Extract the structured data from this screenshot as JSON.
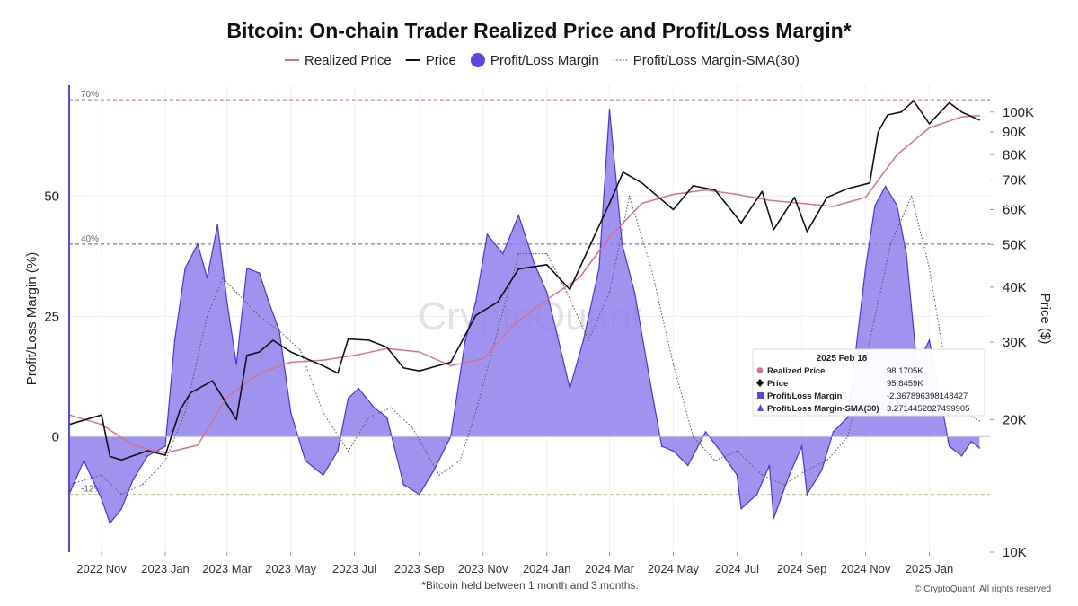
{
  "chart_data": {
    "type": "area",
    "title": "Bitcoin: On-chain Trader Realized Price and Profit/Loss Margin*",
    "footnote": "*Bitcoin held between 1 month and 3 months.",
    "credit": "© CryptoQuant. All rights reserved",
    "watermark": "CryptoQuant",
    "legend": [
      {
        "name": "Realized Price",
        "color": "#d9708a",
        "style": "line"
      },
      {
        "name": "Price",
        "color": "#111111",
        "style": "line"
      },
      {
        "name": "Profit/Loss Margin",
        "color": "#5b46e0",
        "style": "dot"
      },
      {
        "name": "Profit/Loss Margin-SMA(30)",
        "color": "#555555",
        "style": "dotted"
      }
    ],
    "left_axis": {
      "title": "Profit/Loss Margin (%)",
      "ticks": [
        0,
        25,
        50
      ],
      "range": [
        -24,
        73
      ]
    },
    "right_axis": {
      "title": "Price ($)",
      "scale": "log",
      "range": [
        10000,
        115000
      ],
      "ticks": [
        10000,
        20000,
        30000,
        40000,
        50000,
        60000,
        70000,
        80000,
        90000,
        100000
      ],
      "tick_labels": [
        "10K",
        "20K",
        "30K",
        "40K",
        "50K",
        "60K",
        "70K",
        "80K",
        "90K",
        "100K"
      ]
    },
    "reference_lines": [
      {
        "label": "70%",
        "value": 70,
        "color": "#c96a7a"
      },
      {
        "label": "40%",
        "value": 40,
        "color": "#5a56c8"
      },
      {
        "label": "-12%",
        "value": -12,
        "color": "#c8c25a"
      }
    ],
    "x_axis": {
      "start": "2022-10-01",
      "end": "2025-02-28",
      "ticks": [
        "2022-11-01",
        "2023-01-01",
        "2023-03-01",
        "2023-05-01",
        "2023-07-01",
        "2023-09-01",
        "2023-11-01",
        "2024-01-01",
        "2024-03-01",
        "2024-05-01",
        "2024-07-01",
        "2024-09-01",
        "2024-11-01",
        "2025-01-01"
      ],
      "tick_labels": [
        "2022 Nov",
        "2023 Jan",
        "2023 Mar",
        "2023 May",
        "2023 Jul",
        "2023 Sep",
        "2023 Nov",
        "2024 Jan",
        "2024 Mar",
        "2024 May",
        "2024 Jul",
        "2024 Sep",
        "2024 Nov",
        "2025 Jan"
      ]
    },
    "series": [
      {
        "name": "Profit/Loss Margin",
        "unit": "%",
        "dates": [
          "2022-10-01",
          "2022-10-15",
          "2022-11-01",
          "2022-11-09",
          "2022-11-20",
          "2022-12-01",
          "2022-12-15",
          "2023-01-01",
          "2023-01-10",
          "2023-01-20",
          "2023-02-01",
          "2023-02-10",
          "2023-02-20",
          "2023-03-01",
          "2023-03-10",
          "2023-03-20",
          "2023-04-01",
          "2023-04-10",
          "2023-04-20",
          "2023-05-01",
          "2023-05-15",
          "2023-06-01",
          "2023-06-15",
          "2023-06-25",
          "2023-07-05",
          "2023-07-20",
          "2023-08-01",
          "2023-08-17",
          "2023-09-01",
          "2023-09-15",
          "2023-10-01",
          "2023-10-15",
          "2023-10-25",
          "2023-11-05",
          "2023-11-20",
          "2023-12-05",
          "2023-12-20",
          "2024-01-01",
          "2024-01-10",
          "2024-01-23",
          "2024-02-05",
          "2024-02-20",
          "2024-03-01",
          "2024-03-13",
          "2024-03-25",
          "2024-04-10",
          "2024-04-20",
          "2024-05-01",
          "2024-05-15",
          "2024-06-01",
          "2024-06-15",
          "2024-07-01",
          "2024-07-05",
          "2024-07-20",
          "2024-08-01",
          "2024-08-05",
          "2024-08-20",
          "2024-09-01",
          "2024-09-06",
          "2024-09-20",
          "2024-10-01",
          "2024-10-15",
          "2024-11-01",
          "2024-11-10",
          "2024-11-20",
          "2024-12-01",
          "2024-12-10",
          "2024-12-20",
          "2025-01-01",
          "2025-01-10",
          "2025-01-20",
          "2025-02-01",
          "2025-02-10",
          "2025-02-18"
        ],
        "values": [
          -12,
          -5,
          -13,
          -18,
          -15,
          -9,
          -4,
          -2,
          20,
          35,
          40,
          33,
          44,
          28,
          15,
          35,
          34,
          28,
          22,
          5,
          -5,
          -8,
          -3,
          8,
          10,
          6,
          4,
          -10,
          -12,
          -7,
          0,
          20,
          28,
          42,
          38,
          46,
          36,
          30,
          22,
          10,
          20,
          35,
          68,
          40,
          30,
          10,
          -2,
          -3,
          -6,
          1,
          -3,
          -8,
          -15,
          -12,
          -6,
          -17,
          -8,
          -2,
          -12,
          -7,
          1,
          4,
          35,
          48,
          52,
          48,
          38,
          15,
          20,
          10,
          -2,
          -4,
          -1,
          -2.37
        ]
      },
      {
        "name": "Profit/Loss Margin-SMA(30)",
        "unit": "%",
        "dates": [
          "2022-10-01",
          "2022-11-01",
          "2022-11-20",
          "2022-12-10",
          "2023-01-01",
          "2023-01-20",
          "2023-02-10",
          "2023-02-25",
          "2023-03-10",
          "2023-04-01",
          "2023-04-20",
          "2023-05-10",
          "2023-06-01",
          "2023-06-25",
          "2023-07-15",
          "2023-08-05",
          "2023-08-25",
          "2023-09-20",
          "2023-10-10",
          "2023-10-25",
          "2023-11-15",
          "2023-12-05",
          "2024-01-01",
          "2024-01-20",
          "2024-02-10",
          "2024-03-01",
          "2024-03-20",
          "2024-04-10",
          "2024-05-01",
          "2024-05-20",
          "2024-06-10",
          "2024-07-01",
          "2024-07-25",
          "2024-08-15",
          "2024-09-05",
          "2024-09-25",
          "2024-10-15",
          "2024-11-05",
          "2024-11-25",
          "2024-12-15",
          "2025-01-01",
          "2025-01-20",
          "2025-02-05",
          "2025-02-18"
        ],
        "values": [
          -10,
          -8,
          -12,
          -10,
          -5,
          5,
          25,
          33,
          30,
          25,
          22,
          18,
          5,
          -3,
          4,
          6,
          2,
          -8,
          -5,
          5,
          22,
          38,
          38,
          30,
          20,
          30,
          50,
          35,
          15,
          0,
          -5,
          -3,
          -8,
          -10,
          -7,
          -5,
          0,
          20,
          40,
          50,
          35,
          10,
          5,
          3.27
        ]
      },
      {
        "name": "Price",
        "unit": "USD",
        "dates": [
          "2022-10-01",
          "2022-11-01",
          "2022-11-09",
          "2022-11-20",
          "2022-12-15",
          "2023-01-01",
          "2023-01-15",
          "2023-01-25",
          "2023-02-15",
          "2023-03-10",
          "2023-03-20",
          "2023-04-01",
          "2023-04-14",
          "2023-05-01",
          "2023-06-01",
          "2023-06-15",
          "2023-06-25",
          "2023-07-15",
          "2023-08-01",
          "2023-08-17",
          "2023-09-01",
          "2023-10-01",
          "2023-10-25",
          "2023-11-15",
          "2023-12-05",
          "2024-01-01",
          "2024-01-23",
          "2024-02-15",
          "2024-03-01",
          "2024-03-14",
          "2024-04-01",
          "2024-05-01",
          "2024-05-20",
          "2024-06-10",
          "2024-07-05",
          "2024-07-25",
          "2024-08-05",
          "2024-08-25",
          "2024-09-06",
          "2024-09-25",
          "2024-10-15",
          "2024-11-05",
          "2024-11-13",
          "2024-11-22",
          "2024-12-05",
          "2024-12-17",
          "2025-01-01",
          "2025-01-20",
          "2025-02-01",
          "2025-02-18"
        ],
        "values": [
          19500,
          20500,
          16500,
          16200,
          17000,
          16600,
          21000,
          23000,
          24500,
          20000,
          28000,
          28500,
          30300,
          28500,
          26500,
          25500,
          30500,
          30300,
          29200,
          26200,
          25800,
          27000,
          34500,
          37000,
          44000,
          45000,
          39500,
          52000,
          62000,
          73000,
          69000,
          60000,
          68000,
          66500,
          56000,
          66000,
          54000,
          64000,
          53500,
          64000,
          67000,
          69000,
          90000,
          98500,
          100000,
          106000,
          94000,
          105000,
          100000,
          95846
        ]
      },
      {
        "name": "Realized Price",
        "unit": "USD",
        "dates": [
          "2022-10-01",
          "2022-11-01",
          "2022-12-01",
          "2023-01-01",
          "2023-02-01",
          "2023-03-01",
          "2023-04-01",
          "2023-05-01",
          "2023-06-01",
          "2023-07-01",
          "2023-08-01",
          "2023-09-01",
          "2023-10-01",
          "2023-11-01",
          "2023-12-01",
          "2024-01-01",
          "2024-02-01",
          "2024-03-01",
          "2024-04-01",
          "2024-05-01",
          "2024-06-01",
          "2024-07-01",
          "2024-08-01",
          "2024-09-01",
          "2024-10-01",
          "2024-11-01",
          "2024-12-01",
          "2025-01-01",
          "2025-02-01",
          "2025-02-18"
        ],
        "values": [
          20500,
          19500,
          17500,
          16800,
          17500,
          22500,
          25500,
          27000,
          27300,
          28000,
          29000,
          28500,
          26500,
          27500,
          33000,
          37500,
          42000,
          52000,
          62000,
          65000,
          66500,
          65000,
          63000,
          62000,
          61000,
          64000,
          80000,
          92000,
          97500,
          98170.5
        ]
      }
    ],
    "tooltip": {
      "date": "2025 Feb 18",
      "rows": [
        {
          "label": "Realized Price",
          "value": "98.1705K",
          "marker": "dot",
          "color": "#d9708a"
        },
        {
          "label": "Price",
          "value": "95.8459K",
          "marker": "diamond",
          "color": "#111111"
        },
        {
          "label": "Profit/Loss Margin",
          "value": "-2.367896398148427",
          "marker": "square",
          "color": "#5b46e0"
        },
        {
          "label": "Profit/Loss Margin-SMA(30)",
          "value": "3.2714452827499905",
          "marker": "triangle",
          "color": "#5b46e0"
        }
      ]
    }
  }
}
